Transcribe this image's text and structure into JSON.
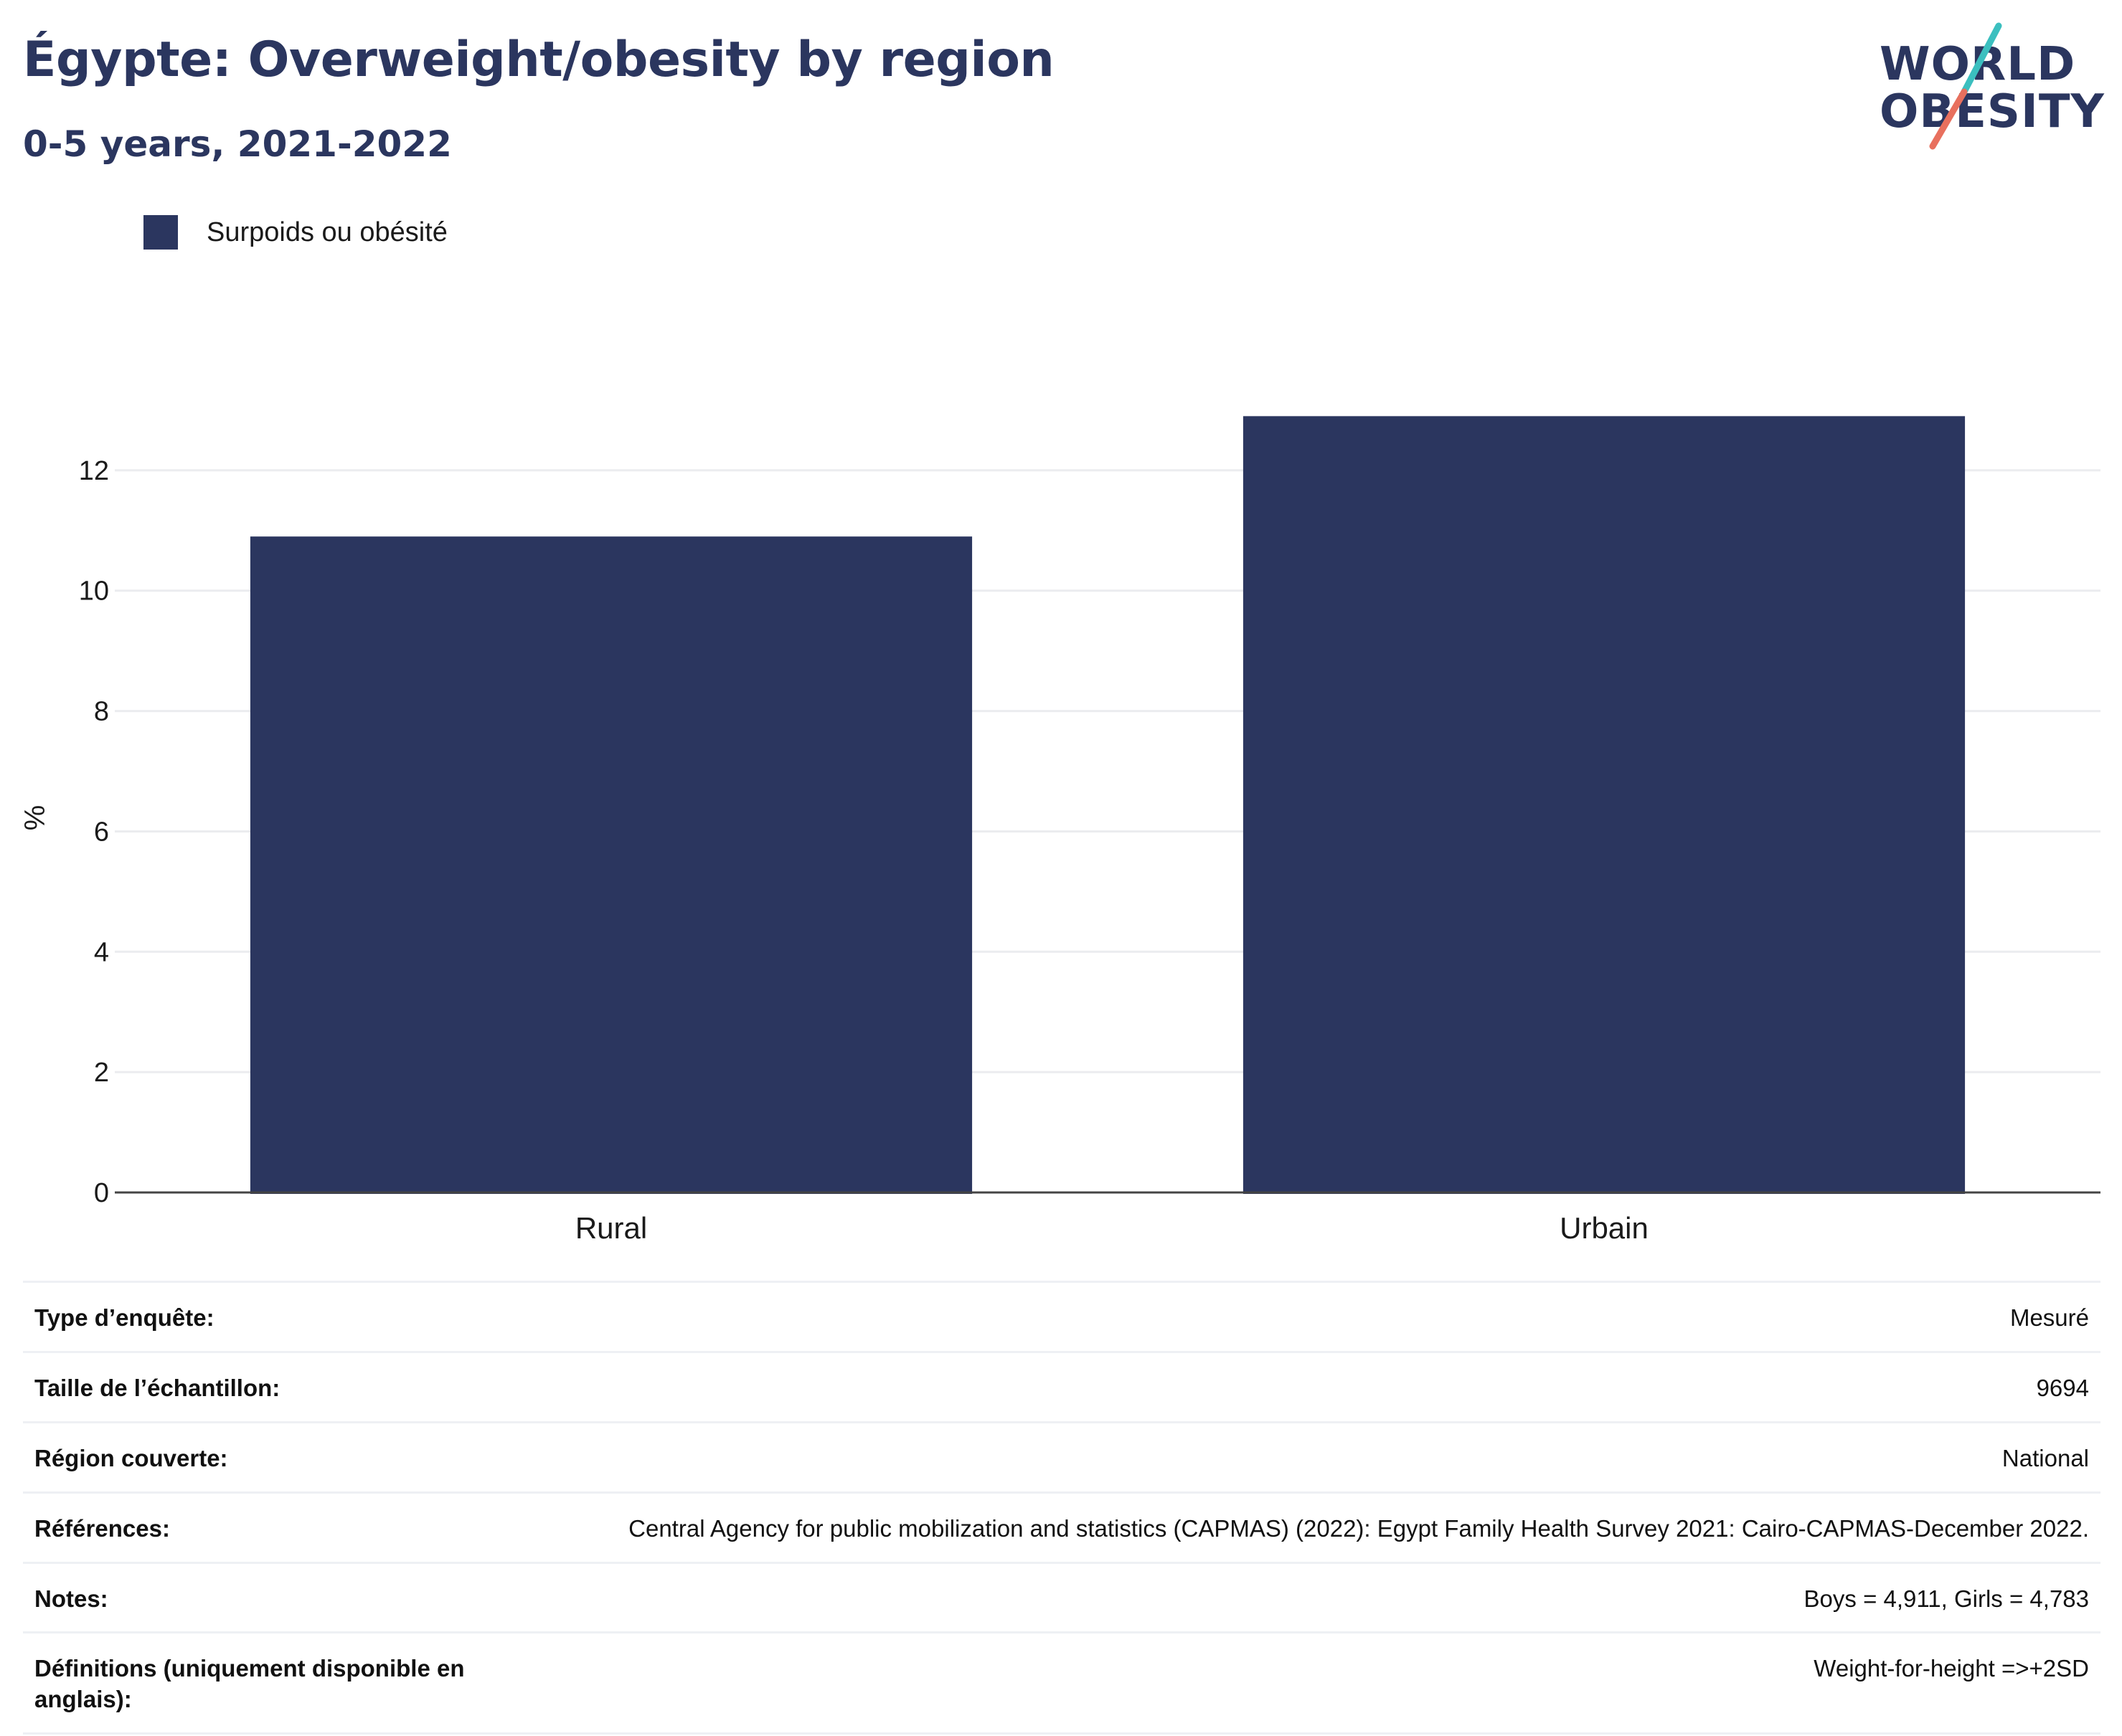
{
  "title": "Égypte: Overweight/obesity by region",
  "subtitle": "0-5 years, 2021-2022",
  "logo": {
    "line1": "WORLD",
    "line2": "OBESITY",
    "colors": {
      "text": "#2b365f",
      "slash_top": "#3bbfbf",
      "slash_bottom": "#e8705e"
    }
  },
  "legend": [
    {
      "label": "Surpoids ou obésité",
      "color": "#2b365f"
    }
  ],
  "chart_data": {
    "type": "bar",
    "categories": [
      "Rural",
      "Urbain"
    ],
    "series": [
      {
        "name": "Surpoids ou obésité",
        "values": [
          10.9,
          12.9
        ],
        "color": "#2b365f"
      }
    ],
    "ylabel": "%",
    "xlabel": "",
    "ylim": [
      0,
      13.5
    ],
    "yticks": [
      0,
      2,
      4,
      6,
      8,
      10,
      12
    ],
    "grid": true,
    "legend_position": "top-left"
  },
  "info": [
    {
      "key": "Type d’enquête:",
      "value": "Mesuré"
    },
    {
      "key": "Taille de l’échantillon:",
      "value": "9694"
    },
    {
      "key": "Région couverte:",
      "value": "National"
    },
    {
      "key": "Références:",
      "value": "Central Agency for public mobilization and statistics (CAPMAS) (2022): Egypt Family Health Survey 2021: Cairo-CAPMAS-December 2022."
    },
    {
      "key": "Notes:",
      "value": "Boys = 4,911, Girls = 4,783"
    },
    {
      "key": "Définitions (uniquement disponible en anglais):",
      "value": "Weight-for-height =>+2SD"
    }
  ]
}
